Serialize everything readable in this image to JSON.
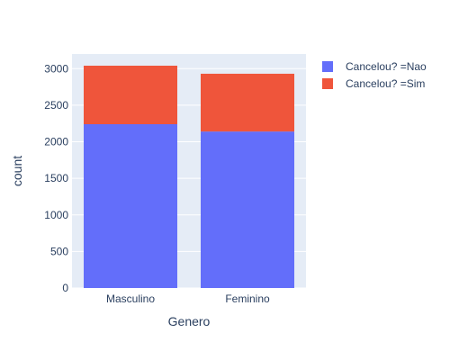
{
  "chart_data": {
    "type": "bar",
    "stacked": true,
    "categories": [
      "Masculino",
      "Feminino"
    ],
    "series": [
      {
        "name": "Cancelou? =Nao",
        "values": [
          2240,
          2140
        ],
        "color": "#636efa"
      },
      {
        "name": "Cancelou? =Sim",
        "values": [
          800,
          790
        ],
        "color": "#ef553b"
      }
    ],
    "xlabel": "Genero",
    "ylabel": "count",
    "ylim": [
      0,
      3200
    ],
    "yticks": [
      0,
      500,
      1000,
      1500,
      2000,
      2500,
      3000
    ],
    "ytick_labels": [
      "0",
      "500",
      "1000",
      "1500",
      "2000",
      "2500",
      "3000"
    ],
    "grid": true,
    "legend_position": "top-right",
    "plot_background": "#e5ecf6"
  }
}
